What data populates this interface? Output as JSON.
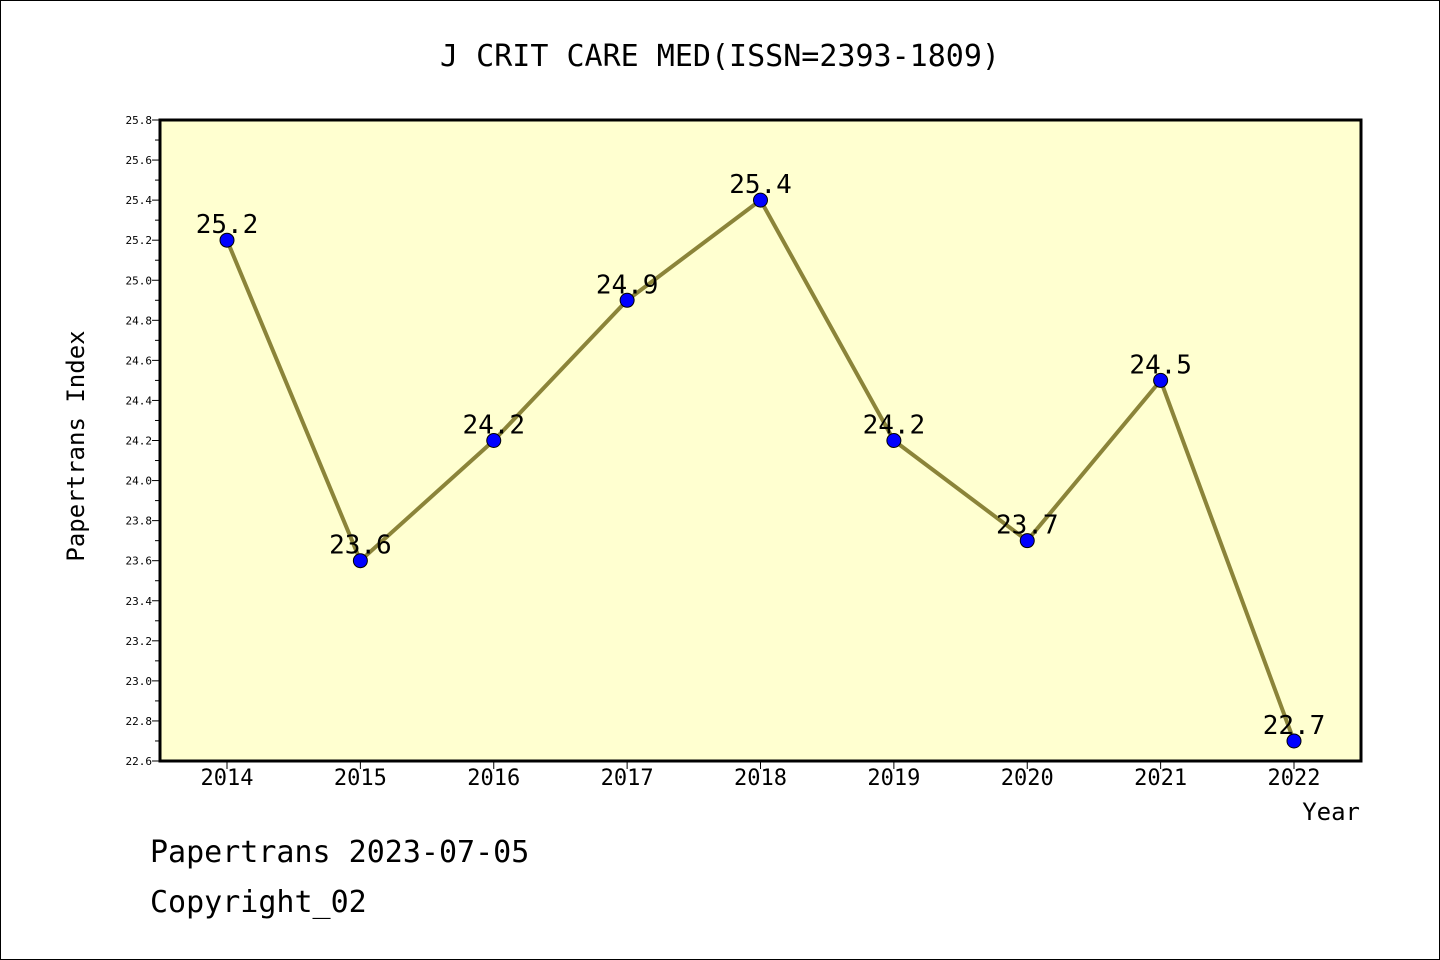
{
  "chart_data": {
    "type": "line",
    "title": "J CRIT CARE MED(ISSN=2393-1809)",
    "xlabel": "Year",
    "ylabel": "Papertrans Index",
    "categories": [
      "2014",
      "2015",
      "2016",
      "2017",
      "2018",
      "2019",
      "2020",
      "2021",
      "2022"
    ],
    "values": [
      25.2,
      23.6,
      24.2,
      24.9,
      25.4,
      24.2,
      23.7,
      24.5,
      22.7
    ],
    "ylim": [
      22.6,
      25.8
    ],
    "ytick_step": 0.2,
    "grid": false,
    "plot_background": "#ffffd0",
    "line_color": "#8b8439",
    "marker_color": "#0000ff"
  },
  "footer": {
    "date_line": "Papertrans 2023-07-05",
    "copyright_line": "Copyright_02"
  }
}
